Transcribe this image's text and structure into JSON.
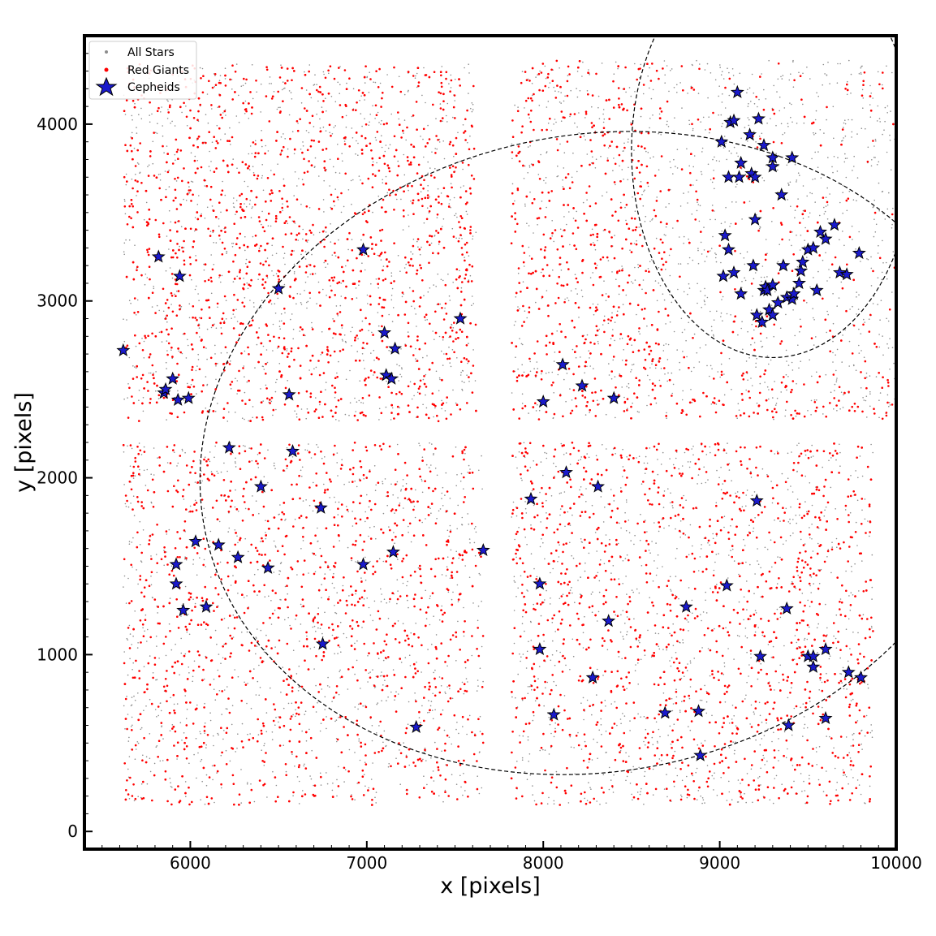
{
  "chart_data": {
    "type": "scatter",
    "title": "",
    "xlabel": "x [pixels]",
    "ylabel": "y [pixels]",
    "xlim": [
      5400,
      10000
    ],
    "ylim": [
      -100,
      4500
    ],
    "xticks": [
      6000,
      7000,
      8000,
      9000,
      10000
    ],
    "yticks": [
      0,
      1000,
      2000,
      3000,
      4000
    ],
    "grid": false,
    "legend_position": "top-left",
    "colors": {
      "all_stars": "#8c8c8c",
      "red_giants": "#ff0000",
      "cepheids": "#1a1acc",
      "cepheid_edge": "#000000",
      "ellipse": "#000000"
    },
    "series": [
      {
        "name": "All Stars",
        "marker": "small grey dots",
        "note": "dense uniform field across four detector chips"
      },
      {
        "name": "Red Giants",
        "marker": "red dots",
        "note": "dense field across four detector chips"
      },
      {
        "name": "Cepheids",
        "marker": "blue stars",
        "x": [
          5620,
          5820,
          5940,
          5850,
          5860,
          5900,
          5930,
          5990,
          6220,
          6400,
          6500,
          6560,
          6580,
          6740,
          6980,
          7100,
          7110,
          7140,
          7160,
          7530,
          6030,
          6160,
          6270,
          6440,
          5920,
          5920,
          5960,
          6090,
          6750,
          6980,
          7150,
          7280,
          7660,
          7930,
          7980,
          8000,
          8110,
          8130,
          8220,
          8310,
          8400,
          7980,
          8060,
          8280,
          8370,
          8690,
          8810,
          8880,
          8890,
          9040,
          9210,
          9230,
          9380,
          9390,
          9500,
          9530,
          9530,
          9600,
          9600,
          9730,
          9800,
          9060,
          9100,
          9080,
          9220,
          9170,
          9250,
          9300,
          9010,
          9120,
          9180,
          9200,
          9300,
          9410,
          9350,
          9030,
          9050,
          9020,
          9080,
          9190,
          9200,
          9120,
          9250,
          9260,
          9270,
          9300,
          9360,
          9380,
          9410,
          9420,
          9450,
          9460,
          9470,
          9500,
          9530,
          9550,
          9570,
          9600,
          9650,
          9680,
          9720,
          9790,
          9210,
          9240,
          9280,
          9300,
          9330,
          9420,
          9110,
          9050
        ],
        "y": [
          2720,
          3250,
          3140,
          2480,
          2500,
          2560,
          2440,
          2450,
          2170,
          1950,
          3070,
          2470,
          2150,
          1830,
          3290,
          2820,
          2580,
          2560,
          2730,
          2900,
          1640,
          1620,
          1550,
          1490,
          1510,
          1400,
          1250,
          1270,
          1060,
          1510,
          1580,
          590,
          1590,
          1880,
          1400,
          2430,
          2640,
          2030,
          2520,
          1950,
          2450,
          1030,
          660,
          870,
          1190,
          670,
          1270,
          680,
          430,
          1390,
          1870,
          990,
          1260,
          600,
          990,
          990,
          930,
          1030,
          640,
          900,
          870,
          4010,
          4180,
          4020,
          4030,
          3940,
          3880,
          3760,
          3900,
          3780,
          3720,
          3700,
          3810,
          3810,
          3600,
          3370,
          3290,
          3140,
          3160,
          3200,
          3460,
          3040,
          3060,
          3080,
          3060,
          3090,
          3200,
          3020,
          3010,
          3040,
          3100,
          3170,
          3220,
          3290,
          3300,
          3060,
          3390,
          3350,
          3430,
          3160,
          3150,
          3270,
          2920,
          2880,
          2950,
          2920,
          2990,
          3040,
          3700,
          3700
        ]
      }
    ],
    "annotations": [
      {
        "type": "ellipse",
        "style": "dashed",
        "cx": 8300,
        "cy": 2140,
        "rx": 2260,
        "ry": 1800,
        "angle_deg": -11
      },
      {
        "type": "ellipse",
        "style": "dashed",
        "cx": 9300,
        "cy": 3850,
        "rx": 800,
        "ry": 1170,
        "angle_deg": 0
      }
    ]
  }
}
